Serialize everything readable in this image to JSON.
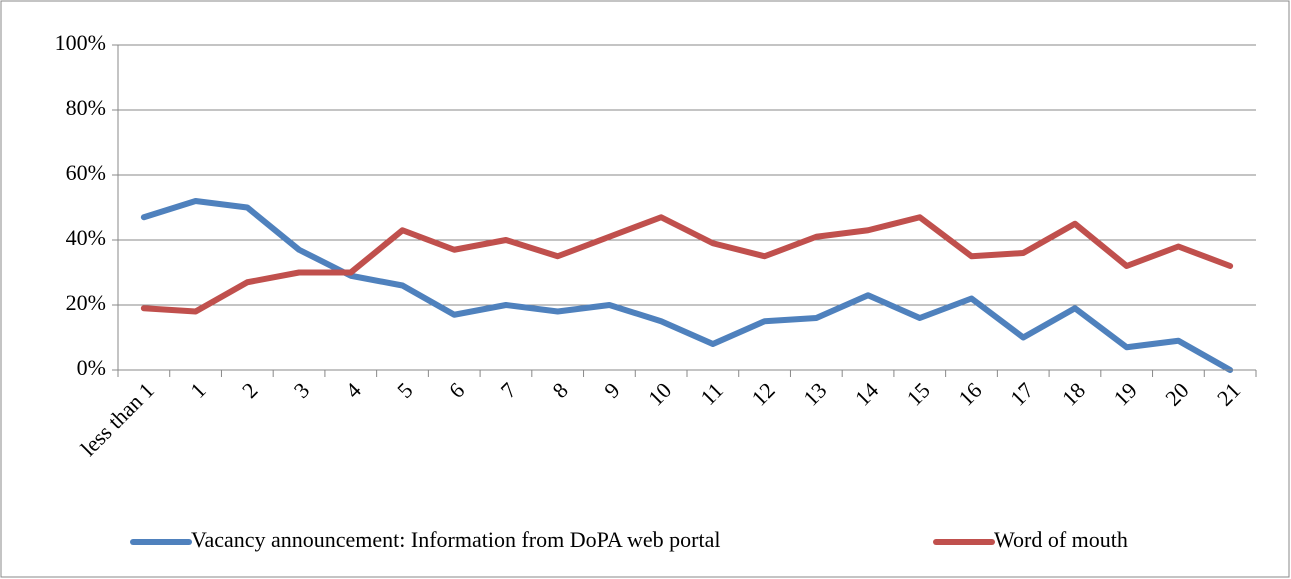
{
  "chart_data": {
    "type": "line",
    "categories": [
      "less than 1",
      "1",
      "2",
      "3",
      "4",
      "5",
      "6",
      "7",
      "8",
      "9",
      "10",
      "11",
      "12",
      "13",
      "14",
      "15",
      "16",
      "17",
      "18",
      "19",
      "20",
      "21"
    ],
    "series": [
      {
        "name": "Vacancy announcement: Information from DoPA web portal",
        "color": "#4f81bd",
        "values": [
          47,
          52,
          50,
          37,
          29,
          26,
          17,
          20,
          18,
          20,
          15,
          8,
          15,
          16,
          23,
          16,
          22,
          10,
          19,
          7,
          9,
          0
        ]
      },
      {
        "name": "Word of mouth",
        "color": "#c0504d",
        "values": [
          19,
          18,
          27,
          30,
          30,
          43,
          37,
          40,
          35,
          41,
          47,
          39,
          35,
          41,
          43,
          47,
          35,
          36,
          45,
          32,
          38,
          32
        ]
      }
    ],
    "ylim": [
      0,
      100
    ],
    "yticks": [
      {
        "value": 0,
        "label": "0%"
      },
      {
        "value": 20,
        "label": "20%"
      },
      {
        "value": 40,
        "label": "40%"
      },
      {
        "value": 60,
        "label": "60%"
      },
      {
        "value": 80,
        "label": "80%"
      },
      {
        "value": 100,
        "label": "100%"
      }
    ],
    "grid": true,
    "legend": "bottom"
  }
}
